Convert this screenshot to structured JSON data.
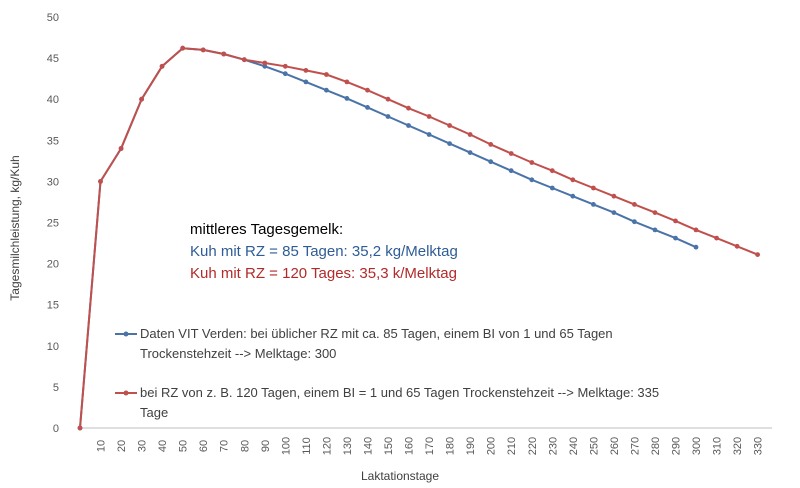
{
  "chart_data": {
    "type": "line",
    "xlabel": "Laktationstage",
    "ylabel": "Tagesmilchleistung, kg/Kuh",
    "ylim": [
      0,
      50
    ],
    "yticks": [
      0,
      5,
      10,
      15,
      20,
      25,
      30,
      35,
      40,
      45,
      50
    ],
    "xticks": [
      10,
      20,
      30,
      40,
      50,
      60,
      70,
      80,
      90,
      100,
      110,
      120,
      130,
      140,
      150,
      160,
      170,
      180,
      190,
      200,
      210,
      220,
      230,
      240,
      250,
      260,
      270,
      280,
      290,
      300,
      310,
      320,
      330
    ],
    "grid": "none",
    "series": [
      {
        "name_lines": [
          "Daten VIT Verden: bei üblicher RZ mit ca. 85 Tagen, einem BI von 1 und 65 Tagen",
          "Trockenstehzeit --> Melktage: 300"
        ],
        "color": "#4a73a8",
        "x": [
          0,
          10,
          20,
          30,
          40,
          50,
          60,
          70,
          80,
          90,
          100,
          110,
          120,
          130,
          140,
          150,
          160,
          170,
          180,
          190,
          200,
          210,
          220,
          230,
          240,
          250,
          260,
          270,
          280,
          290,
          300
        ],
        "values": [
          0,
          30,
          34,
          40,
          44,
          46.2,
          46,
          45.5,
          44.8,
          44,
          43.1,
          42.1,
          41.1,
          40.1,
          39,
          37.9,
          36.8,
          35.7,
          34.6,
          33.5,
          32.4,
          31.3,
          30.2,
          29.2,
          28.2,
          27.2,
          26.2,
          25.1,
          24.1,
          23.1,
          22
        ]
      },
      {
        "name_lines": [
          "bei RZ von z. B. 120 Tagen, einem BI = 1 und 65 Tagen Trockenstehzeit --> Melktage: 335",
          "Tage"
        ],
        "color": "#c0504d",
        "x": [
          0,
          10,
          20,
          30,
          40,
          50,
          60,
          70,
          80,
          90,
          100,
          110,
          120,
          130,
          140,
          150,
          160,
          170,
          180,
          190,
          200,
          210,
          220,
          230,
          240,
          250,
          260,
          270,
          280,
          290,
          300,
          310,
          320,
          330
        ],
        "values": [
          0,
          30,
          34,
          40,
          44,
          46.2,
          46,
          45.5,
          44.8,
          44.4,
          44,
          43.5,
          43,
          42.1,
          41.1,
          40,
          38.9,
          37.9,
          36.8,
          35.7,
          34.5,
          33.4,
          32.3,
          31.3,
          30.2,
          29.2,
          28.2,
          27.2,
          26.2,
          25.2,
          24.1,
          23.1,
          22.1,
          21.1
        ]
      }
    ],
    "annotation": {
      "heading": "mittleres Tagesgemelk:",
      "line1": "Kuh mit RZ = 85 Tagen: 35,2 kg/Melktag",
      "line2": "Kuh mit RZ = 120 Tages: 35,3 k/Melktag",
      "heading_color": "#000000",
      "line1_color": "#2e5c96",
      "line2_color": "#b22a2a"
    }
  }
}
